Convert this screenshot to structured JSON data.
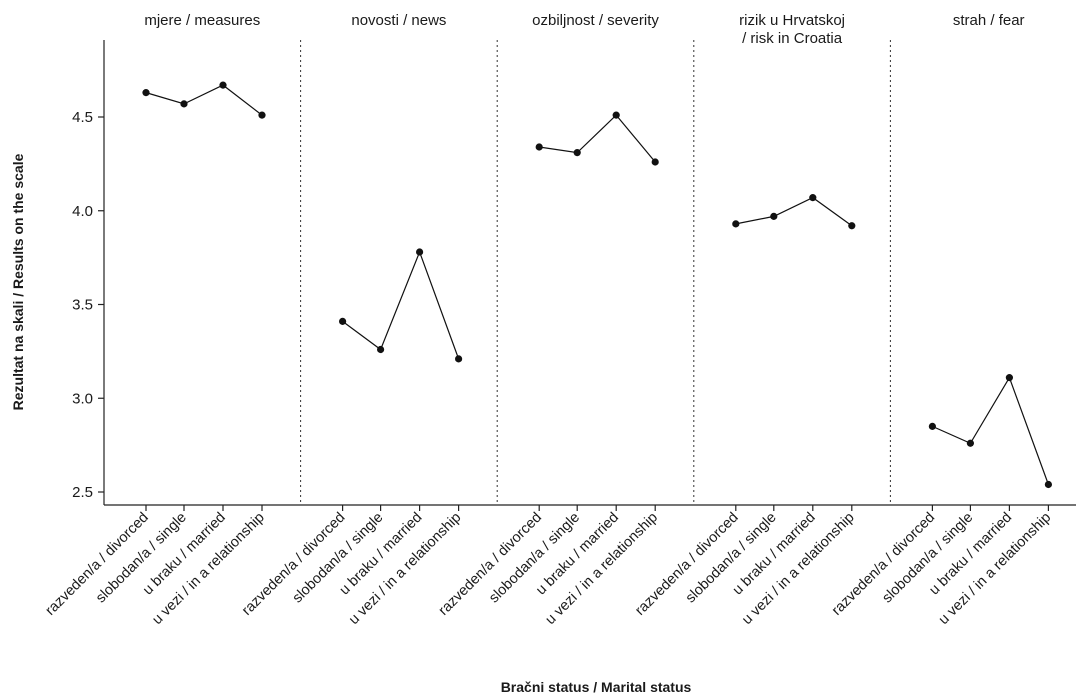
{
  "chart_data": {
    "type": "line",
    "xlabel": "Bračni status / Marital status",
    "ylabel": "Rezultat na skali / Results on the scale",
    "ylim": [
      2.45,
      4.83
    ],
    "yticks": [
      "2.5",
      "3.0",
      "3.5",
      "4.0",
      "4.5"
    ],
    "categories": [
      "razveden/a / divorced",
      "slobodan/a / single",
      "u braku / married",
      "u vezi / in a relationship"
    ],
    "panels": [
      {
        "title": [
          "mjere / measures"
        ],
        "values": [
          4.63,
          4.57,
          4.67,
          4.51
        ]
      },
      {
        "title": [
          "novosti / news"
        ],
        "values": [
          3.41,
          3.26,
          3.78,
          3.21
        ]
      },
      {
        "title": [
          "ozbiljnost / severity"
        ],
        "values": [
          4.34,
          4.31,
          4.51,
          4.26
        ]
      },
      {
        "title": [
          "rizik u Hrvatskoj",
          "/ risk in Croatia"
        ],
        "values": [
          3.93,
          3.97,
          4.07,
          3.92
        ]
      },
      {
        "title": [
          "strah / fear"
        ],
        "values": [
          2.85,
          2.76,
          3.11,
          2.54
        ]
      }
    ],
    "grid": false,
    "dividers": "dotted vertical between panels"
  }
}
